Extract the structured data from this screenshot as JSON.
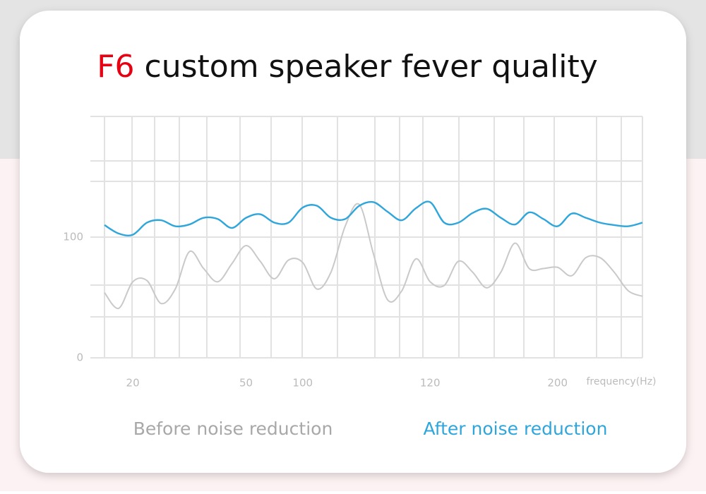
{
  "chart_data": {
    "type": "line",
    "title_highlight": "F6",
    "title": "custom speaker fever quality",
    "x_label": "frequency(Hz)",
    "categories": [
      null,
      null,
      "20",
      null,
      null,
      null,
      null,
      null,
      null,
      null,
      "50",
      null,
      null,
      null,
      "100",
      null,
      null,
      null,
      null,
      null,
      null,
      null,
      null,
      "120",
      null,
      null,
      null,
      null,
      null,
      null,
      null,
      null,
      "200",
      null,
      null,
      null,
      null,
      null,
      null
    ],
    "ylim": [
      0,
      200
    ],
    "yticks": [
      0,
      100
    ],
    "grid": true,
    "series": [
      {
        "name": "Before noise reduction",
        "color": "#c9c9c9",
        "values": [
          54,
          41,
          63,
          64,
          45,
          57,
          88,
          74,
          63,
          78,
          93,
          80,
          65.5,
          81,
          79,
          57,
          71,
          109,
          127,
          86,
          48,
          55.5,
          82,
          63,
          60,
          80,
          71,
          58,
          71,
          95,
          74,
          74,
          75,
          68,
          83,
          83,
          71,
          55.5,
          51
        ]
      },
      {
        "name": "After noise reduction",
        "color": "#2ea6dc",
        "values": [
          110,
          103,
          102,
          112,
          114,
          109,
          110.5,
          116,
          115,
          107.6,
          116,
          119,
          112,
          112,
          124.5,
          126,
          116,
          115,
          126,
          129,
          121,
          114,
          124,
          129,
          112,
          112,
          120,
          123.5,
          116,
          110.5,
          120.5,
          115,
          109,
          119.5,
          116,
          112,
          110,
          109,
          112
        ]
      }
    ]
  }
}
